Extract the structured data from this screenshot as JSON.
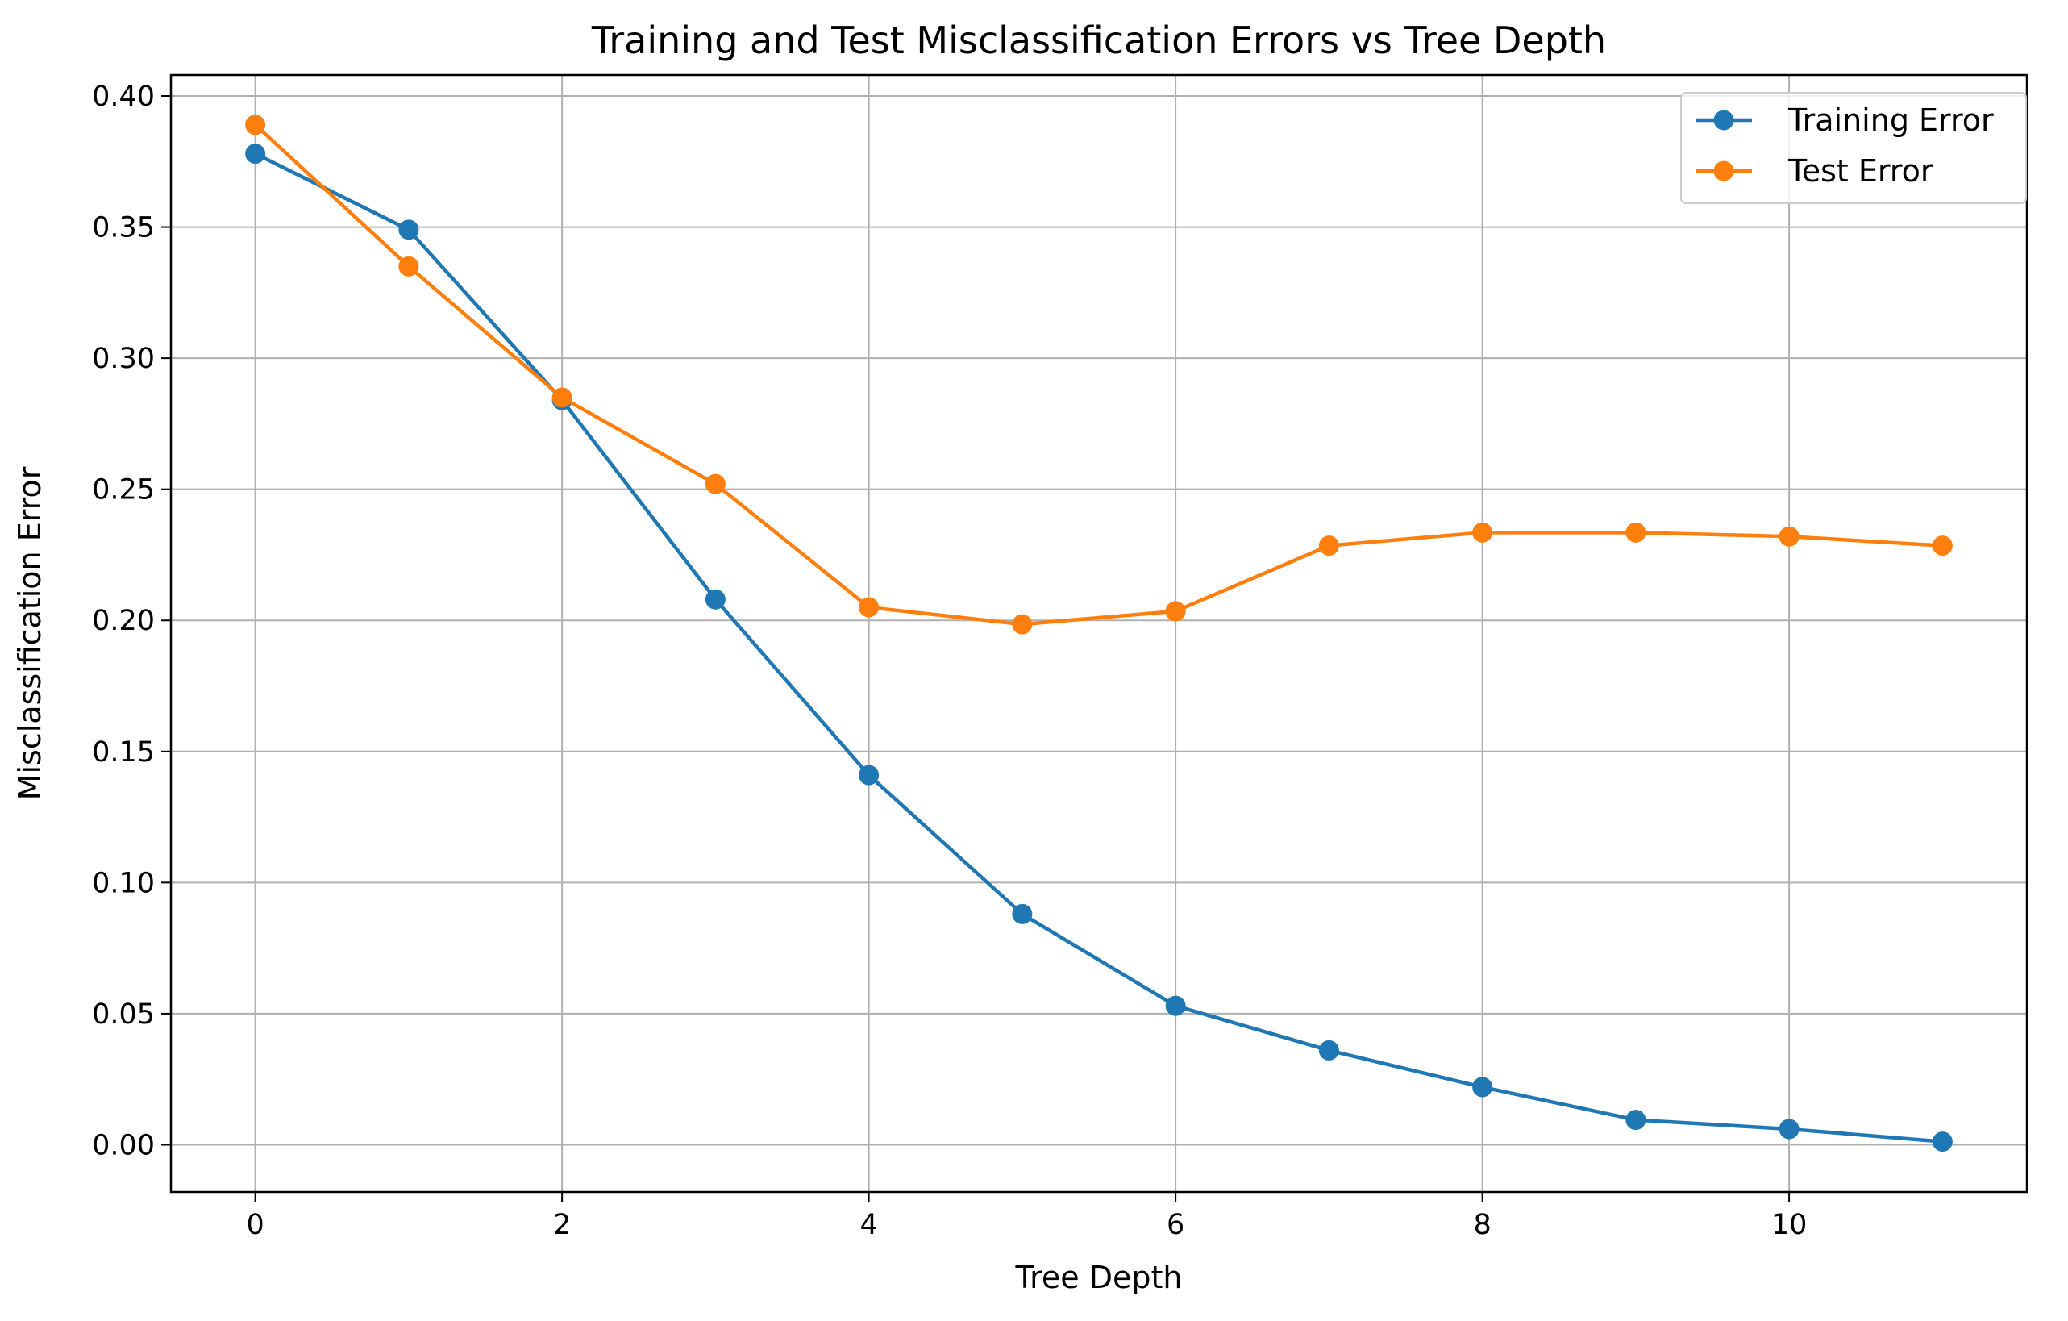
{
  "chart_data": {
    "type": "line",
    "title": "Training and Test Misclassification Errors vs Tree Depth",
    "xlabel": "Tree Depth",
    "ylabel": "Misclassification Error",
    "x": [
      0,
      1,
      2,
      3,
      4,
      5,
      6,
      7,
      8,
      9,
      10,
      11
    ],
    "xlim": [
      -0.55,
      11.55
    ],
    "ylim": [
      -0.018,
      0.408
    ],
    "xticks": [
      0,
      2,
      4,
      6,
      8,
      10
    ],
    "xtick_labels": [
      "0",
      "2",
      "4",
      "6",
      "8",
      "10"
    ],
    "yticks": [
      0.0,
      0.05,
      0.1,
      0.15,
      0.2,
      0.25,
      0.3,
      0.35,
      0.4
    ],
    "ytick_labels": [
      "0.00",
      "0.05",
      "0.10",
      "0.15",
      "0.20",
      "0.25",
      "0.30",
      "0.35",
      "0.40"
    ],
    "grid": true,
    "legend_position": "top-right",
    "marker": "circle",
    "series": [
      {
        "name": "Training Error",
        "color": "#1f77b4",
        "values": [
          0.378,
          0.349,
          0.284,
          0.208,
          0.141,
          0.088,
          0.053,
          0.036,
          0.022,
          0.0095,
          0.006,
          0.0012
        ]
      },
      {
        "name": "Test Error",
        "color": "#ff7f0e",
        "values": [
          0.389,
          0.335,
          0.285,
          0.252,
          0.205,
          0.1985,
          0.2035,
          0.2285,
          0.2335,
          0.2335,
          0.232,
          0.2285
        ]
      }
    ]
  }
}
